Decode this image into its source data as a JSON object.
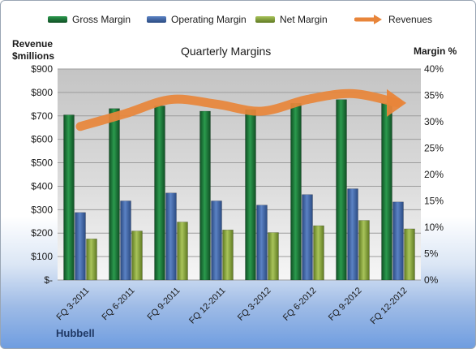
{
  "chart_data": {
    "type": "bar",
    "title": "Quarterly Margins",
    "left_axis_title_line1": "Revenue",
    "left_axis_title_line2": "$millions",
    "right_axis_title": "Margin %",
    "company": "Hubbell",
    "categories": [
      "FQ 3-2011",
      "FQ 6-2011",
      "FQ 9-2011",
      "FQ 12-2011",
      "FQ 3-2012",
      "FQ 6-2012",
      "FQ 9-2012",
      "FQ 12-2012"
    ],
    "left_axis": {
      "min": 0,
      "max": 900,
      "ticks": [
        "$-",
        "$100",
        "$200",
        "$300",
        "$400",
        "$500",
        "$600",
        "$700",
        "$800",
        "$900"
      ]
    },
    "right_axis": {
      "min": 0,
      "max": 40,
      "ticks": [
        "0%",
        "5%",
        "10%",
        "15%",
        "20%",
        "25%",
        "30%",
        "35%",
        "40%"
      ]
    },
    "series": [
      {
        "name": "Gross Margin",
        "axis": "right",
        "color": "#1e7b3c",
        "values": [
          31.3,
          32.5,
          33.0,
          32.0,
          32.3,
          33.5,
          34.2,
          33.5
        ]
      },
      {
        "name": "Operating Margin",
        "axis": "right",
        "color": "#3f64a6",
        "values": [
          12.8,
          15.0,
          16.5,
          15.0,
          14.2,
          16.2,
          17.3,
          14.8
        ]
      },
      {
        "name": "Net Margin",
        "axis": "right",
        "color": "#8aa63a",
        "values": [
          7.8,
          9.3,
          11.0,
          9.5,
          9.0,
          10.3,
          11.3,
          9.7
        ]
      },
      {
        "name": "Revenues",
        "axis": "left",
        "color": "#e8853a",
        "values": [
          655,
          710,
          770,
          750,
          720,
          770,
          795,
          755
        ]
      }
    ],
    "legend_position": "top",
    "grid": true
  }
}
